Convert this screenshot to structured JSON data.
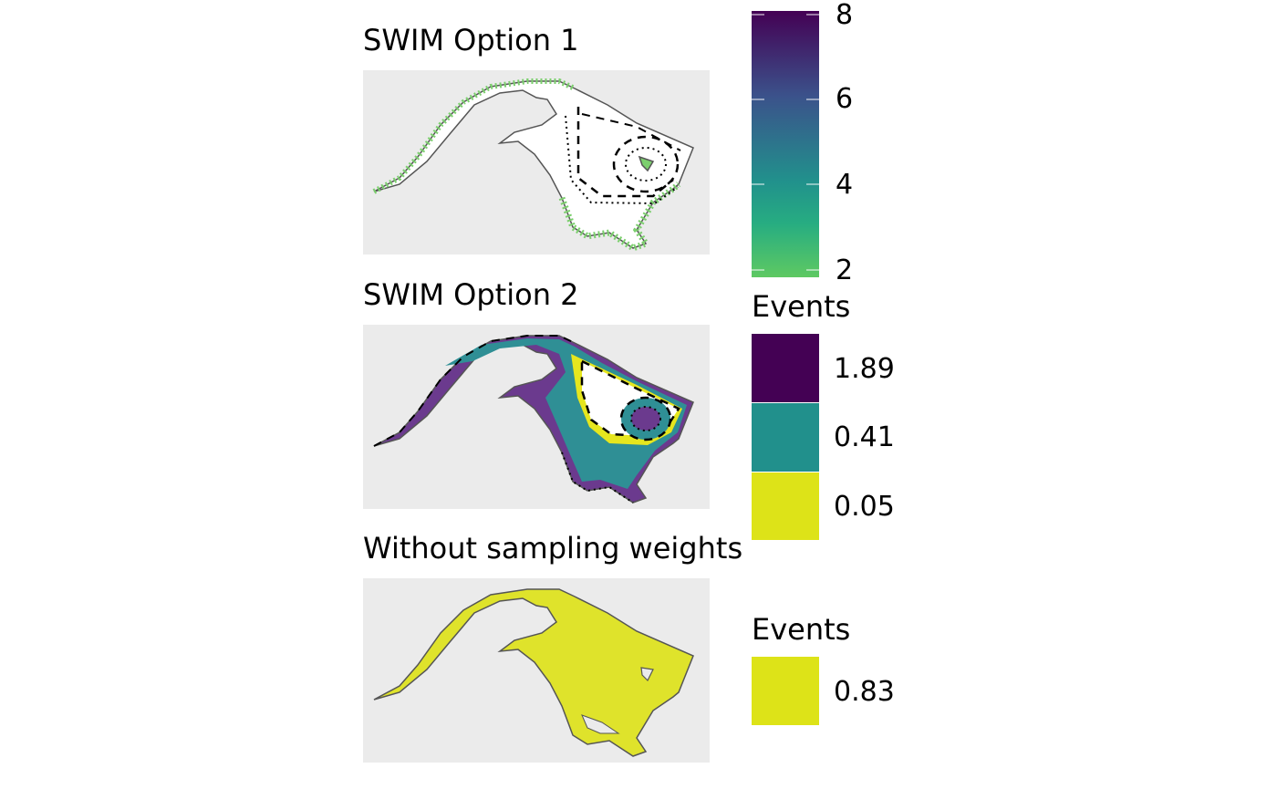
{
  "panels": [
    {
      "title": "SWIM Option 1",
      "fill": "weights"
    },
    {
      "title": "SWIM Option 2",
      "fill": "bands"
    },
    {
      "title": "Without sampling weights",
      "fill": "uniform"
    }
  ],
  "colorbar": {
    "title": "",
    "ticks": [
      "8",
      "6",
      "4",
      "2"
    ],
    "gradient": [
      "#440154",
      "#3b528b",
      "#21918c",
      "#27ad81",
      "#5ec962"
    ]
  },
  "legend_option2": {
    "title": "Events",
    "items": [
      {
        "label": "1.89",
        "color": "#440154"
      },
      {
        "label": "0.41",
        "color": "#21908c"
      },
      {
        "label": "0.05",
        "color": "#dde318"
      }
    ]
  },
  "legend_uniform": {
    "title": "Events",
    "items": [
      {
        "label": "0.83",
        "color": "#dde318"
      }
    ]
  },
  "colors": {
    "panel_bg": "#ebebeb",
    "outline": "#555555",
    "band_outer": "#6b3a8e",
    "band_mid": "#2f8f95",
    "band_inner": "#e6e61e",
    "weights_green": "#7ccf6e",
    "uniform_fill": "#dfe32b"
  }
}
